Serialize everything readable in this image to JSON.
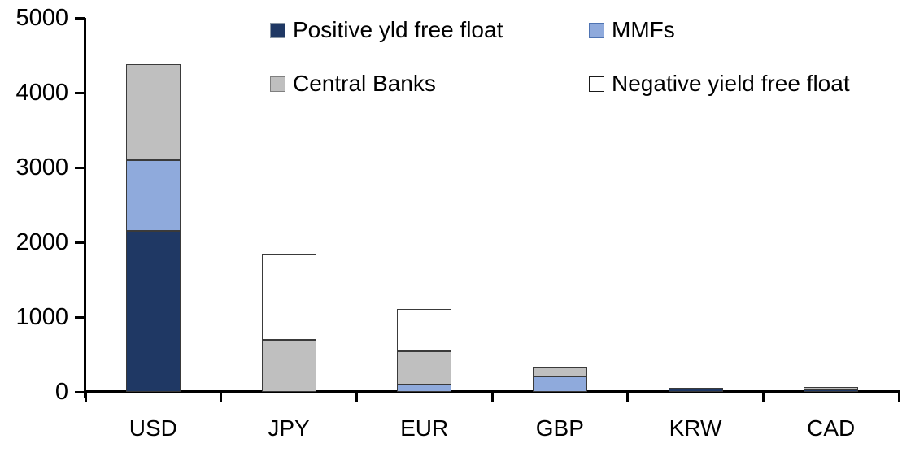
{
  "chart_data": {
    "type": "bar",
    "stacked": true,
    "title": "",
    "xlabel": "",
    "ylabel": "",
    "grid": false,
    "legend_position": "top-two-rows",
    "categories": [
      "USD",
      "JPY",
      "EUR",
      "GBP",
      "KRW",
      "CAD"
    ],
    "yticks": [
      0,
      1000,
      2000,
      3000,
      4000,
      5000
    ],
    "ylim": [
      0,
      5000
    ],
    "series": [
      {
        "name": "Positive yld free float",
        "color": "#1f3864",
        "swatch_border": "#8a97a5",
        "values": [
          2150,
          0,
          0,
          0,
          50,
          30
        ]
      },
      {
        "name": "MMFs",
        "color": "#8faadc",
        "swatch_border": "#4f74b3",
        "values": [
          950,
          0,
          100,
          210,
          0,
          0
        ]
      },
      {
        "name": "Central Banks",
        "color": "#bfbfbf",
        "swatch_border": "#7f7f7f",
        "values": [
          1280,
          700,
          440,
          120,
          0,
          30
        ]
      },
      {
        "name": "Negative yield free float",
        "color": "#ffffff",
        "swatch_border": "#1a1a1a",
        "values": [
          0,
          1140,
          570,
          0,
          0,
          0
        ]
      }
    ],
    "axis_color": "#000000",
    "bar_border_color": "#3a3a3a",
    "text_color": "#000000"
  }
}
